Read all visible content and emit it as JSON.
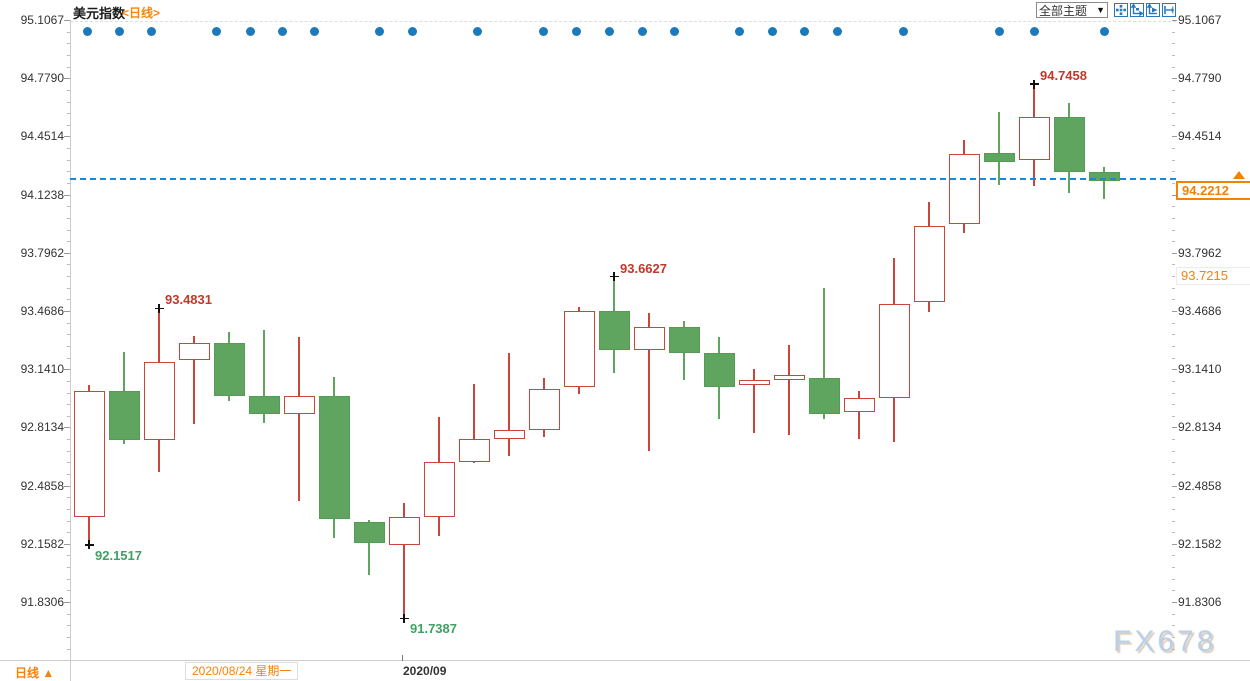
{
  "header": {
    "title": "美元指数",
    "period_tag": "<日线>",
    "theme_dropdown_label": "全部主题",
    "dropdown_arrow": "▼",
    "toolbar_icons": [
      "move-crosshair-icon",
      "fit-chart-icon",
      "scale-axis-icon",
      "shift-right-icon"
    ]
  },
  "colors": {
    "up": "#c9463c",
    "down": "#5fa55f",
    "dot_blue": "#1a7abc",
    "current_price_line": "#1e87d5",
    "accent_orange": "#f5820b",
    "annotation_high": "#c0392b",
    "annotation_low": "#3da263"
  },
  "chart_data": {
    "type": "candlestick",
    "title": "美元指数",
    "period": "日线",
    "ylim": [
      91.8306,
      95.1067
    ],
    "grid": "minimal",
    "y_ticks": [
      "95.1067",
      "94.7790",
      "94.4514",
      "94.1238",
      "93.7962",
      "93.4686",
      "93.1410",
      "92.8134",
      "92.4858",
      "92.1582",
      "91.8306"
    ],
    "candles": [
      {
        "o": 92.31,
        "h": 93.05,
        "l": 92.1517,
        "c": 93.02
      },
      {
        "o": 93.02,
        "h": 93.24,
        "l": 92.72,
        "c": 92.74
      },
      {
        "o": 92.74,
        "h": 93.4831,
        "l": 92.56,
        "c": 93.18
      },
      {
        "o": 93.19,
        "h": 93.33,
        "l": 92.83,
        "c": 93.29
      },
      {
        "o": 93.29,
        "h": 93.35,
        "l": 92.96,
        "c": 92.99
      },
      {
        "o": 92.99,
        "h": 93.36,
        "l": 92.84,
        "c": 92.89
      },
      {
        "o": 92.89,
        "h": 93.32,
        "l": 92.4,
        "c": 92.99
      },
      {
        "o": 92.99,
        "h": 93.1,
        "l": 92.19,
        "c": 92.3
      },
      {
        "o": 92.28,
        "h": 92.29,
        "l": 91.98,
        "c": 92.16
      },
      {
        "o": 92.15,
        "h": 92.39,
        "l": 91.7387,
        "c": 92.31
      },
      {
        "o": 92.31,
        "h": 92.87,
        "l": 92.2,
        "c": 92.62
      },
      {
        "o": 92.62,
        "h": 93.06,
        "l": 92.61,
        "c": 92.75
      },
      {
        "o": 92.75,
        "h": 93.23,
        "l": 92.65,
        "c": 92.8
      },
      {
        "o": 92.8,
        "h": 93.09,
        "l": 92.76,
        "c": 93.03
      },
      {
        "o": 93.04,
        "h": 93.49,
        "l": 93.0,
        "c": 93.47
      },
      {
        "o": 93.47,
        "h": 93.6627,
        "l": 93.12,
        "c": 93.25
      },
      {
        "o": 93.25,
        "h": 93.46,
        "l": 92.68,
        "c": 93.38
      },
      {
        "o": 93.38,
        "h": 93.41,
        "l": 93.08,
        "c": 93.23
      },
      {
        "o": 93.23,
        "h": 93.32,
        "l": 92.86,
        "c": 93.04
      },
      {
        "o": 93.05,
        "h": 93.14,
        "l": 92.78,
        "c": 93.08
      },
      {
        "o": 93.08,
        "h": 93.28,
        "l": 92.77,
        "c": 93.11
      },
      {
        "o": 93.09,
        "h": 93.6,
        "l": 92.86,
        "c": 92.89
      },
      {
        "o": 92.9,
        "h": 93.02,
        "l": 92.75,
        "c": 92.98
      },
      {
        "o": 92.98,
        "h": 93.77,
        "l": 92.73,
        "c": 93.51
      },
      {
        "o": 93.52,
        "h": 94.08,
        "l": 93.46,
        "c": 93.95
      },
      {
        "o": 93.96,
        "h": 94.43,
        "l": 93.91,
        "c": 94.35
      },
      {
        "o": 94.36,
        "h": 94.59,
        "l": 94.18,
        "c": 94.31
      },
      {
        "o": 94.32,
        "h": 94.7458,
        "l": 94.17,
        "c": 94.56
      },
      {
        "o": 94.56,
        "h": 94.64,
        "l": 94.13,
        "c": 94.25
      },
      {
        "o": 94.25,
        "h": 94.28,
        "l": 94.1,
        "c": 94.2
      }
    ],
    "event_dot_xs": [
      87,
      119,
      151,
      216,
      250,
      282,
      314,
      379,
      412,
      477,
      543,
      576,
      609,
      642,
      674,
      739,
      772,
      804,
      837,
      903,
      999,
      1034,
      1104
    ],
    "annotations": [
      {
        "index": 0,
        "kind": "low",
        "label": "92.1517"
      },
      {
        "index": 2,
        "kind": "high",
        "label": "93.4831"
      },
      {
        "index": 9,
        "kind": "low",
        "label": "91.7387"
      },
      {
        "index": 15,
        "kind": "high",
        "label": "93.6627"
      },
      {
        "index": 27,
        "kind": "high",
        "label": "94.7458"
      }
    ],
    "marker_glyph": "+",
    "current_price": "94.2212",
    "reference_price": "93.7215",
    "legend_position": "none"
  },
  "footer": {
    "period_label": "日线 ▲",
    "date_tooltip": "2020/08/24 星期一",
    "month_label": "2020/09"
  },
  "watermark": "FX678"
}
